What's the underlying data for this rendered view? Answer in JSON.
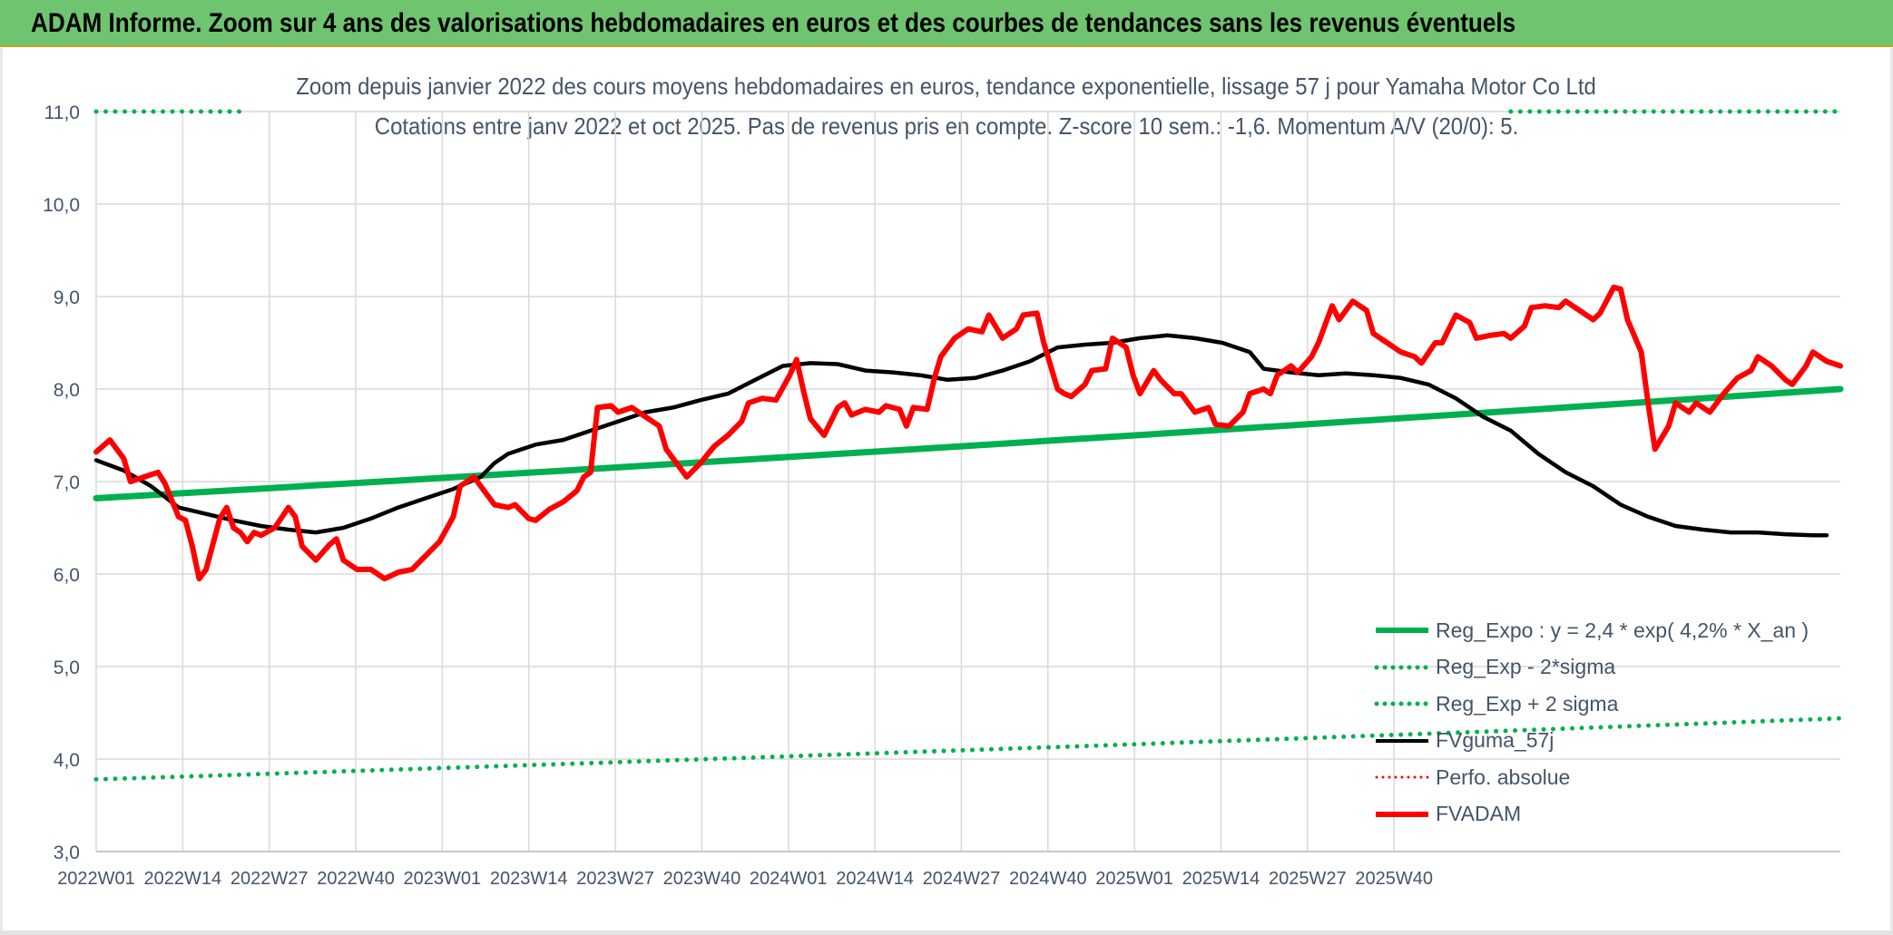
{
  "header": {
    "title": "ADAM Informe. Zoom sur 4 ans des valorisations hebdomadaires en euros et des courbes de tendances sans les revenus éventuels"
  },
  "colors": {
    "banner": "#6fc46f",
    "reg_expo": "#00b050",
    "fvguma": "#000000",
    "fvadam": "#ff0000",
    "perfo": "#ff0000",
    "text": "#44546a",
    "grid": "#d9d9d9"
  },
  "chart_data": {
    "type": "line",
    "title": "Zoom depuis janvier 2022 des cours moyens hebdomadaires en euros, tendance exponentielle, lissage 57 j pour Yamaha Motor Co Ltd",
    "subtitle": "Cotations entre janv 2022 et oct 2025. Pas de revenus pris en compte. Z-score 10 sem.: -1,6. Momentum A/V (20/0): 5.",
    "ylim": [
      3.0,
      11.0
    ],
    "yticks": [
      "3,0",
      "4,0",
      "5,0",
      "6,0",
      "7,0",
      "8,0",
      "9,0",
      "10,0",
      "11,0"
    ],
    "ytick_values": [
      3,
      4,
      5,
      6,
      7,
      8,
      9,
      10,
      11
    ],
    "xtick_labels": [
      "2022W01",
      "2022W14",
      "2022W27",
      "2022W40",
      "2023W01",
      "2023W14",
      "2023W27",
      "2023W40",
      "2024W01",
      "2024W14",
      "2024W27",
      "2024W40",
      "2025W01",
      "2025W14",
      "2025W27",
      "2025W40"
    ],
    "x_week_count": 199,
    "grid": true,
    "legend_position": "bottom-right",
    "series": [
      {
        "name": "Reg_Expo : y = 2,4 * exp( 4,2% *  X_an )",
        "style": "solid-thick",
        "color": "#00b050",
        "start": 6.82,
        "end": 8.0
      },
      {
        "name": "Reg_Exp - 2*sigma",
        "style": "dotted",
        "color": "#00b050",
        "start": 3.78,
        "end": 4.44
      },
      {
        "name": "Reg_Exp + 2 sigma",
        "style": "dotted",
        "color": "#00b050",
        "start": 11.0,
        "end": 11.0
      },
      {
        "name": "FVguma_57j",
        "style": "solid",
        "color": "#000000",
        "points": [
          [
            0,
            7.23
          ],
          [
            4,
            7.12
          ],
          [
            8,
            6.95
          ],
          [
            12,
            6.72
          ],
          [
            16,
            6.65
          ],
          [
            20,
            6.58
          ],
          [
            24,
            6.52
          ],
          [
            28,
            6.48
          ],
          [
            32,
            6.45
          ],
          [
            36,
            6.5
          ],
          [
            40,
            6.6
          ],
          [
            44,
            6.72
          ],
          [
            48,
            6.82
          ],
          [
            52,
            6.92
          ],
          [
            56,
            7.05
          ],
          [
            58,
            7.2
          ],
          [
            60,
            7.3
          ],
          [
            64,
            7.4
          ],
          [
            68,
            7.45
          ],
          [
            72,
            7.55
          ],
          [
            76,
            7.65
          ],
          [
            80,
            7.75
          ],
          [
            84,
            7.8
          ],
          [
            88,
            7.88
          ],
          [
            92,
            7.95
          ],
          [
            96,
            8.1
          ],
          [
            100,
            8.25
          ],
          [
            104,
            8.28
          ],
          [
            108,
            8.27
          ],
          [
            112,
            8.2
          ],
          [
            116,
            8.18
          ],
          [
            120,
            8.15
          ],
          [
            124,
            8.1
          ],
          [
            128,
            8.12
          ],
          [
            132,
            8.2
          ],
          [
            136,
            8.3
          ],
          [
            140,
            8.45
          ],
          [
            144,
            8.48
          ],
          [
            148,
            8.5
          ],
          [
            152,
            8.55
          ],
          [
            156,
            8.58
          ],
          [
            160,
            8.55
          ],
          [
            164,
            8.5
          ],
          [
            168,
            8.4
          ],
          [
            170,
            8.22
          ],
          [
            174,
            8.18
          ],
          [
            178,
            8.15
          ],
          [
            182,
            8.17
          ],
          [
            186,
            8.15
          ],
          [
            190,
            8.12
          ],
          [
            194,
            8.05
          ],
          [
            198,
            7.9
          ],
          [
            202,
            7.7
          ],
          [
            206,
            7.55
          ],
          [
            210,
            7.3
          ],
          [
            214,
            7.1
          ],
          [
            218,
            6.95
          ],
          [
            222,
            6.75
          ],
          [
            226,
            6.62
          ],
          [
            230,
            6.52
          ],
          [
            234,
            6.48
          ],
          [
            238,
            6.45
          ],
          [
            242,
            6.45
          ],
          [
            246,
            6.43
          ],
          [
            250,
            6.42
          ],
          [
            252,
            6.42
          ]
        ]
      },
      {
        "name": "Perfo. absolue",
        "style": "dotted",
        "color": "#ff0000"
      },
      {
        "name": "FVADAM",
        "style": "solid-thick",
        "color": "#ff0000",
        "points": [
          [
            0,
            7.32
          ],
          [
            2,
            7.45
          ],
          [
            4,
            7.25
          ],
          [
            5,
            7.0
          ],
          [
            7,
            7.05
          ],
          [
            9,
            7.1
          ],
          [
            10,
            6.98
          ],
          [
            12,
            6.62
          ],
          [
            13,
            6.58
          ],
          [
            14,
            6.3
          ],
          [
            15,
            5.95
          ],
          [
            16,
            6.05
          ],
          [
            18,
            6.6
          ],
          [
            19,
            6.72
          ],
          [
            20,
            6.5
          ],
          [
            21,
            6.45
          ],
          [
            22,
            6.35
          ],
          [
            23,
            6.45
          ],
          [
            24,
            6.42
          ],
          [
            26,
            6.5
          ],
          [
            28,
            6.72
          ],
          [
            29,
            6.62
          ],
          [
            30,
            6.3
          ],
          [
            32,
            6.15
          ],
          [
            34,
            6.32
          ],
          [
            35,
            6.38
          ],
          [
            36,
            6.15
          ],
          [
            38,
            6.05
          ],
          [
            40,
            6.05
          ],
          [
            42,
            5.95
          ],
          [
            44,
            6.02
          ],
          [
            46,
            6.05
          ],
          [
            48,
            6.2
          ],
          [
            50,
            6.35
          ],
          [
            52,
            6.62
          ],
          [
            53,
            6.95
          ],
          [
            55,
            7.05
          ],
          [
            57,
            6.85
          ],
          [
            58,
            6.75
          ],
          [
            60,
            6.72
          ],
          [
            61,
            6.75
          ],
          [
            63,
            6.6
          ],
          [
            64,
            6.58
          ],
          [
            66,
            6.7
          ],
          [
            68,
            6.78
          ],
          [
            70,
            6.9
          ],
          [
            71,
            7.05
          ],
          [
            72,
            7.1
          ],
          [
            73,
            7.8
          ],
          [
            75,
            7.82
          ],
          [
            76,
            7.75
          ],
          [
            78,
            7.8
          ],
          [
            80,
            7.7
          ],
          [
            82,
            7.6
          ],
          [
            83,
            7.35
          ],
          [
            85,
            7.15
          ],
          [
            86,
            7.05
          ],
          [
            88,
            7.2
          ],
          [
            90,
            7.38
          ],
          [
            92,
            7.5
          ],
          [
            94,
            7.65
          ],
          [
            95,
            7.85
          ],
          [
            97,
            7.9
          ],
          [
            99,
            7.88
          ],
          [
            101,
            8.15
          ],
          [
            102,
            8.32
          ],
          [
            103,
            7.98
          ],
          [
            104,
            7.68
          ],
          [
            106,
            7.5
          ],
          [
            108,
            7.8
          ],
          [
            109,
            7.85
          ],
          [
            110,
            7.72
          ],
          [
            112,
            7.78
          ],
          [
            114,
            7.75
          ],
          [
            115,
            7.82
          ],
          [
            117,
            7.78
          ],
          [
            118,
            7.6
          ],
          [
            119,
            7.8
          ],
          [
            121,
            7.78
          ],
          [
            122,
            8.1
          ],
          [
            123,
            8.35
          ],
          [
            125,
            8.55
          ],
          [
            127,
            8.65
          ],
          [
            129,
            8.62
          ],
          [
            130,
            8.8
          ],
          [
            132,
            8.55
          ],
          [
            134,
            8.65
          ],
          [
            135,
            8.8
          ],
          [
            137,
            8.82
          ],
          [
            138,
            8.5
          ],
          [
            140,
            8.0
          ],
          [
            141,
            7.95
          ],
          [
            142,
            7.92
          ],
          [
            144,
            8.05
          ],
          [
            145,
            8.2
          ],
          [
            147,
            8.22
          ],
          [
            148,
            8.55
          ],
          [
            150,
            8.45
          ],
          [
            151,
            8.15
          ],
          [
            152,
            7.95
          ],
          [
            154,
            8.2
          ],
          [
            155,
            8.1
          ],
          [
            157,
            7.95
          ],
          [
            158,
            7.95
          ],
          [
            160,
            7.75
          ],
          [
            162,
            7.8
          ],
          [
            163,
            7.62
          ],
          [
            165,
            7.6
          ],
          [
            167,
            7.75
          ],
          [
            168,
            7.95
          ],
          [
            170,
            8.0
          ],
          [
            171,
            7.95
          ],
          [
            172,
            8.15
          ],
          [
            174,
            8.25
          ],
          [
            175,
            8.18
          ],
          [
            177,
            8.35
          ],
          [
            178,
            8.5
          ],
          [
            180,
            8.9
          ],
          [
            181,
            8.75
          ],
          [
            183,
            8.95
          ],
          [
            185,
            8.85
          ],
          [
            186,
            8.6
          ],
          [
            188,
            8.5
          ],
          [
            190,
            8.4
          ],
          [
            192,
            8.35
          ],
          [
            193,
            8.28
          ],
          [
            195,
            8.5
          ],
          [
            196,
            8.5
          ],
          [
            198,
            8.8
          ],
          [
            200,
            8.72
          ],
          [
            201,
            8.55
          ],
          [
            203,
            8.58
          ],
          [
            205,
            8.6
          ],
          [
            206,
            8.55
          ],
          [
            208,
            8.68
          ],
          [
            209,
            8.88
          ],
          [
            211,
            8.9
          ],
          [
            213,
            8.88
          ],
          [
            214,
            8.95
          ],
          [
            216,
            8.85
          ],
          [
            218,
            8.75
          ],
          [
            219,
            8.82
          ],
          [
            221,
            9.1
          ],
          [
            222,
            9.08
          ],
          [
            223,
            8.75
          ],
          [
            225,
            8.4
          ],
          [
            226,
            7.85
          ],
          [
            227,
            7.35
          ],
          [
            229,
            7.6
          ],
          [
            230,
            7.85
          ],
          [
            232,
            7.75
          ],
          [
            233,
            7.85
          ],
          [
            235,
            7.75
          ],
          [
            237,
            7.95
          ],
          [
            239,
            8.12
          ],
          [
            241,
            8.2
          ],
          [
            242,
            8.35
          ],
          [
            244,
            8.25
          ],
          [
            246,
            8.1
          ],
          [
            247,
            8.05
          ],
          [
            249,
            8.25
          ],
          [
            250,
            8.4
          ],
          [
            252,
            8.3
          ],
          [
            254,
            8.25
          ]
        ]
      }
    ]
  }
}
